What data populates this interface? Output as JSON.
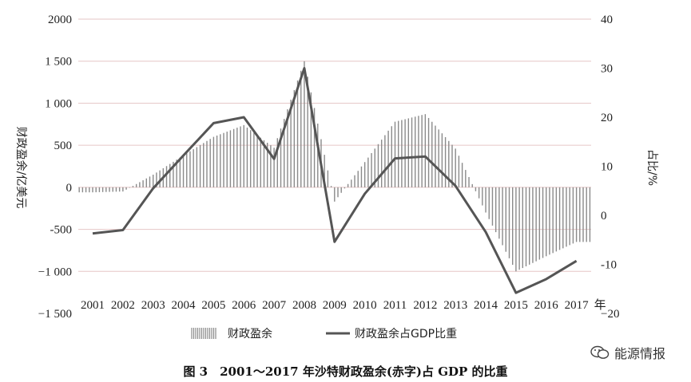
{
  "chart_data": {
    "type": "bar+line",
    "title": "",
    "categories": [
      "2001",
      "2002",
      "2003",
      "2004",
      "2005",
      "2006",
      "2007",
      "2008",
      "2009",
      "2010",
      "2011",
      "2012",
      "2013",
      "2014",
      "2015",
      "2016",
      "2017"
    ],
    "x_suffix": "年",
    "left_axis": {
      "label": "财政盈余/亿美元",
      "ylim": [
        -1500,
        2000
      ],
      "ticks": [
        2000,
        1500,
        1000,
        500,
        0,
        -500,
        -1000,
        -1500
      ],
      "tick_labels": [
        "2000",
        "1 500",
        "1 000",
        "500",
        "0",
        "-500",
        "−1 000",
        "−1 500"
      ]
    },
    "right_axis": {
      "label": "占比/%",
      "ylim": [
        -20,
        40
      ],
      "ticks": [
        40,
        30,
        20,
        10,
        0,
        -10,
        -20
      ],
      "tick_labels": [
        "40",
        "30",
        "20",
        "10",
        "0",
        "-10",
        "−20"
      ]
    },
    "series": [
      {
        "name": "财政盈余",
        "kind": "bar",
        "axis": "left",
        "values": [
          -60,
          -50,
          150,
          380,
          600,
          740,
          470,
          1500,
          -170,
          300,
          780,
          870,
          460,
          -300,
          -1000,
          -820,
          -650
        ]
      },
      {
        "name": "财政盈余占GDP比重",
        "kind": "line",
        "axis": "right",
        "values": [
          -3.7,
          -3.0,
          5.5,
          12.2,
          18.8,
          20.0,
          11.5,
          30.0,
          -5.4,
          4.4,
          11.6,
          12.0,
          6.0,
          -3.4,
          -15.8,
          -13.0,
          -9.3
        ]
      }
    ],
    "colors": {
      "bars": "#8a8a8a",
      "line": "#555555",
      "gridline": "#e6c6c6"
    },
    "grid": true,
    "legend_position": "bottom"
  },
  "caption": "图 3　2001～2017 年沙特财政盈余(赤字)占 GDP 的比重",
  "watermark": {
    "icon": "wechat-icon",
    "text": "能源情报"
  }
}
